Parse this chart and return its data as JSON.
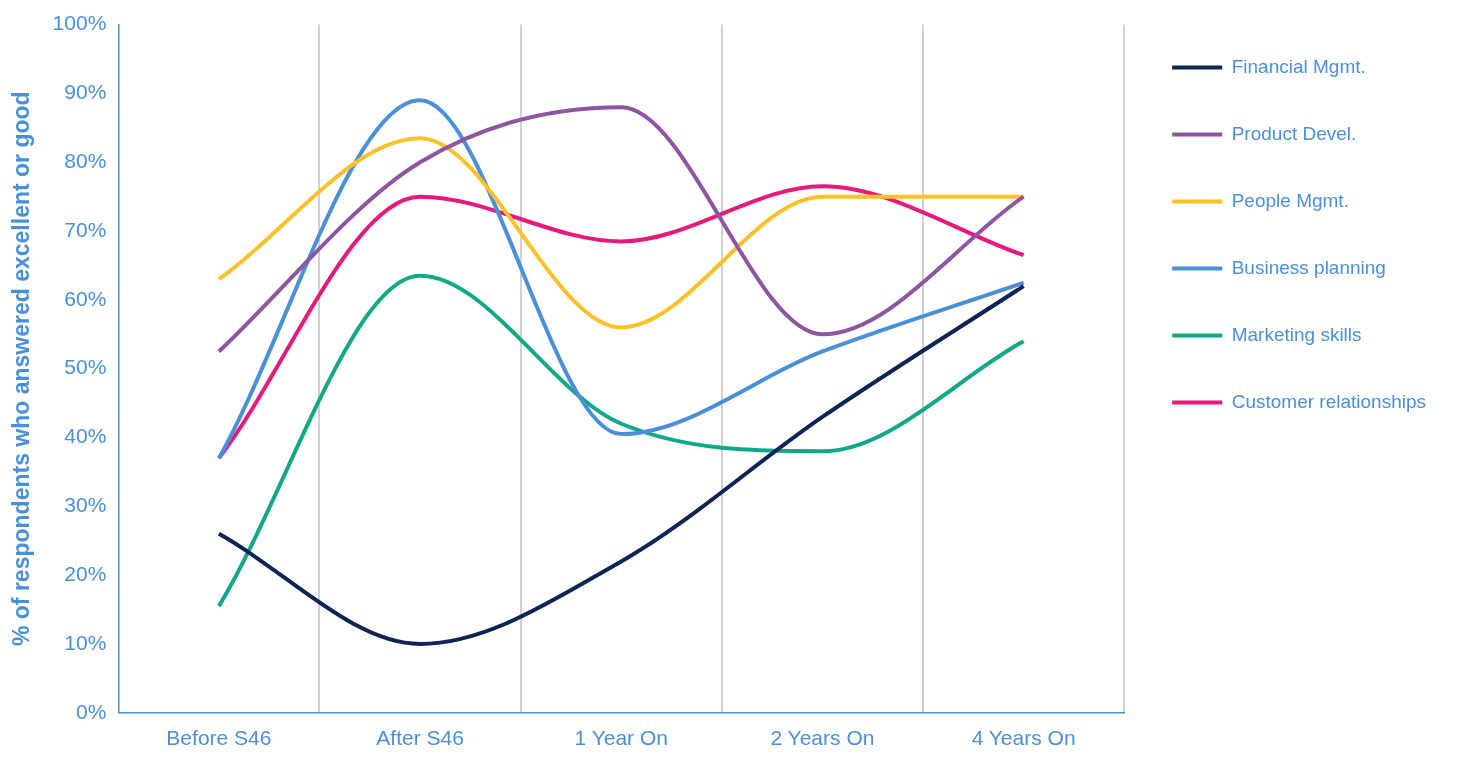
{
  "chart_data": {
    "type": "line",
    "ylabel": "% of respondents who answered excellent or good",
    "categories": [
      "Before S46",
      "After S46",
      "1 Year On",
      "2 Years On",
      "4 Years On"
    ],
    "ylim": [
      0,
      100
    ],
    "yticks": [
      {
        "value": 0,
        "label": "0%"
      },
      {
        "value": 10,
        "label": "10%"
      },
      {
        "value": 20,
        "label": "20%"
      },
      {
        "value": 30,
        "label": "30%"
      },
      {
        "value": 40,
        "label": "40%"
      },
      {
        "value": 50,
        "label": "50%"
      },
      {
        "value": 60,
        "label": "60%"
      },
      {
        "value": 70,
        "label": "70%"
      },
      {
        "value": 80,
        "label": "80%"
      },
      {
        "value": 90,
        "label": "90%"
      },
      {
        "value": 100,
        "label": "100%"
      }
    ],
    "grid": "x",
    "legend": "right",
    "marker": "none",
    "line_style": "solid",
    "series": [
      {
        "name": "Financial Mgmt.",
        "color": "#0e2356",
        "values": [
          26,
          10,
          22,
          43,
          62
        ]
      },
      {
        "name": "Product Devel.",
        "color": "#8e55a0",
        "values": [
          52.5,
          80,
          88,
          55,
          75
        ]
      },
      {
        "name": "People Mgmt.",
        "color": "#fcc02b",
        "values": [
          63,
          83.5,
          56,
          75,
          75
        ]
      },
      {
        "name": "Business planning",
        "color": "#4a90d9",
        "values": [
          37,
          89,
          40.5,
          52.5,
          62.5
        ]
      },
      {
        "name": "Marketing skills",
        "color": "#11a88a",
        "values": [
          15.5,
          63.5,
          42,
          38,
          54
        ]
      },
      {
        "name": "Customer relationships",
        "color": "#e6197d",
        "values": [
          37,
          75,
          68.5,
          76.5,
          66.5
        ]
      }
    ]
  }
}
